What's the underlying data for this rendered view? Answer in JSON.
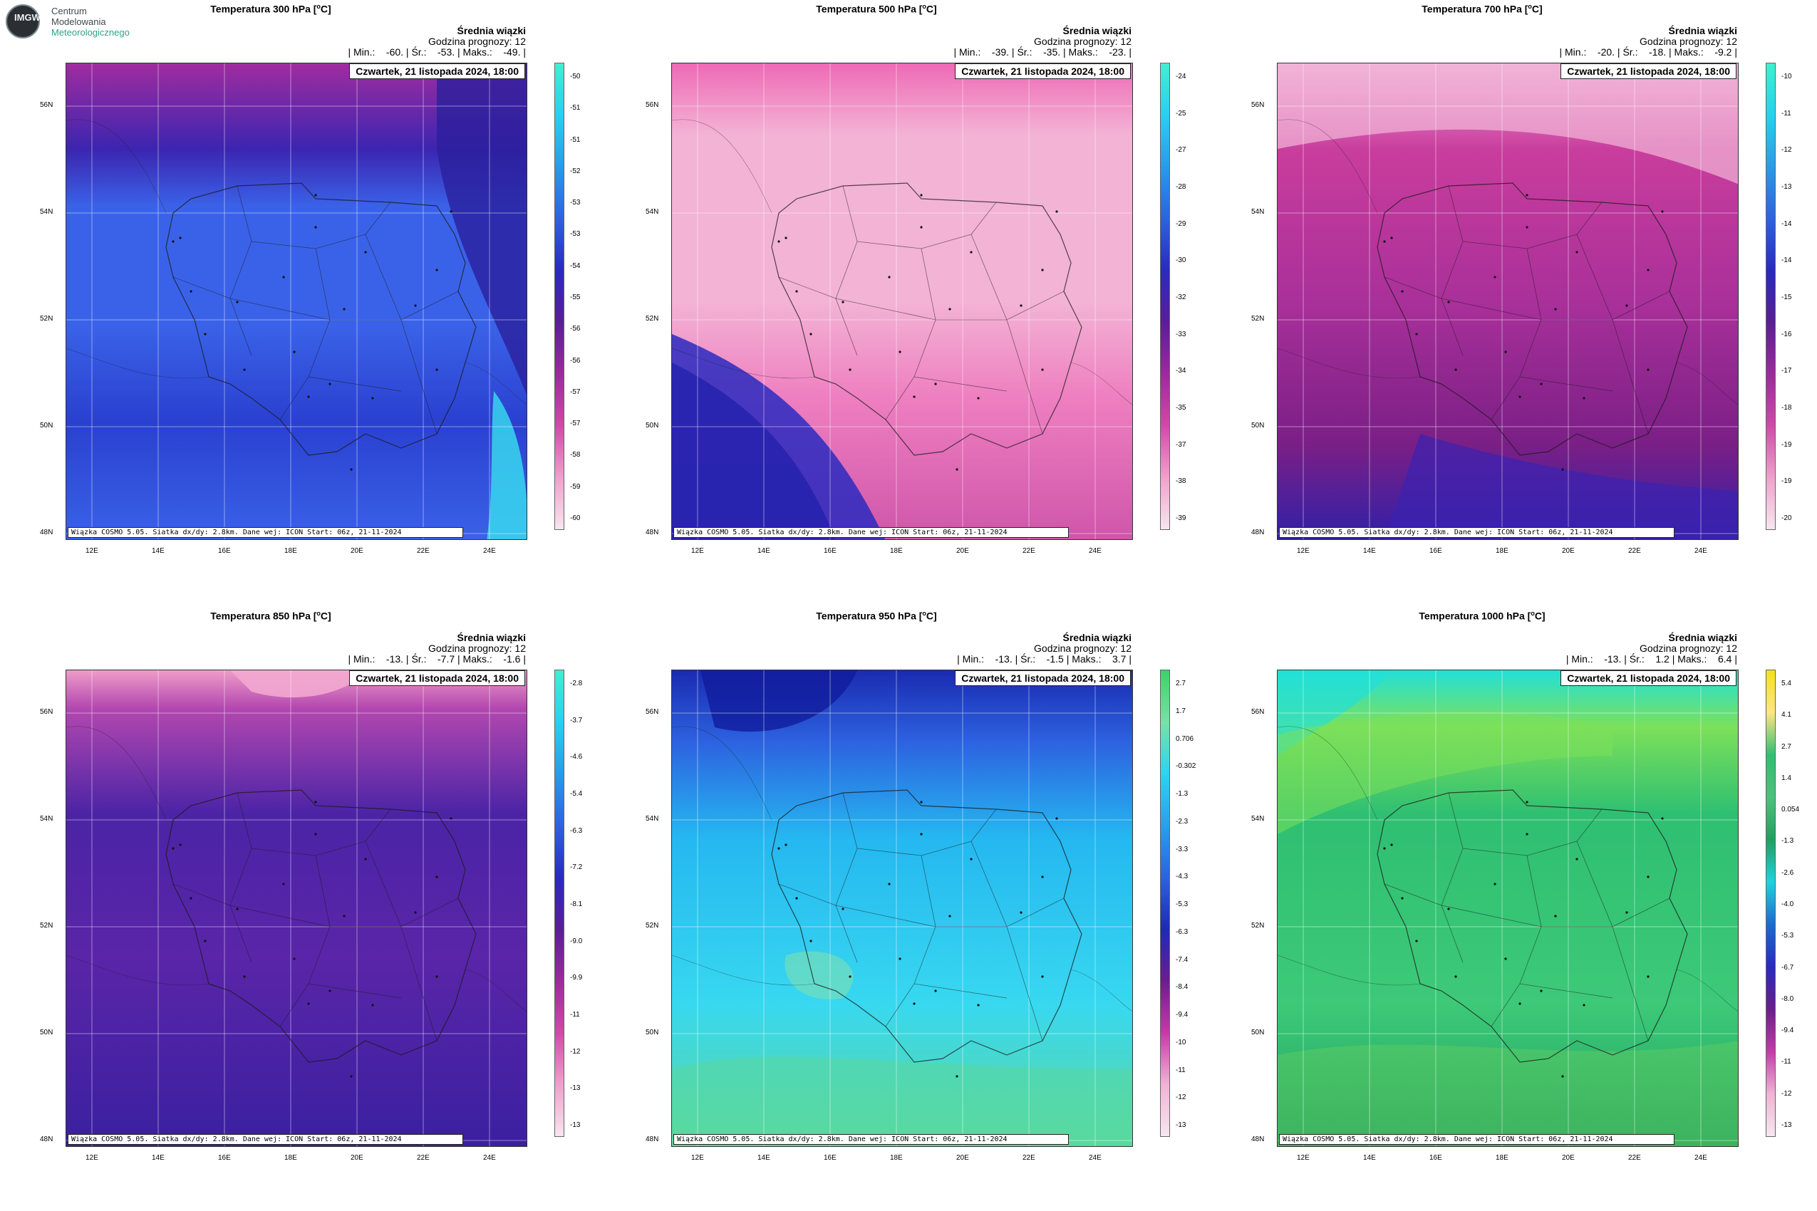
{
  "logo": {
    "badge": "IMGW",
    "line1": "Centrum",
    "line2": "Modelowania",
    "line3": "Meteorologicznego"
  },
  "common": {
    "subtitle": "Średnia wiązki",
    "forecast_hour": "Godzina prognozy: 12",
    "date": "Czwartek, 21 listopada 2024, 18:00",
    "footer": "Wiązka COSMO 5.05. Siatka dx/dy: 2.8km. Dane wej: ICON Start: 06z, 21-11-2024",
    "lat_labels": [
      "56N",
      "54N",
      "52N",
      "50N",
      "48N"
    ],
    "lon_labels": [
      "12E",
      "14E",
      "16E",
      "18E",
      "20E",
      "22E",
      "24E"
    ]
  },
  "panels": [
    {
      "title": "Temperatura 300 hPa [",
      "unit": "C]",
      "stats": "| Min.:    -60. | Śr.:    -53. | Maks.:    -49. |",
      "scheme": "cold",
      "colorbar_labels": [
        "-50",
        "-51",
        "-51",
        "-52",
        "-53",
        "-53",
        "-54",
        "-55",
        "-56",
        "-56",
        "-57",
        "-57",
        "-58",
        "-59",
        "-60"
      ],
      "colors": {
        "base": "#3a62e8",
        "top": "#a02ca0",
        "band": "#3b25b0",
        "accent": "#38e0f0"
      }
    },
    {
      "title": "Temperatura 500 hPa [",
      "unit": "C]",
      "stats": "| Min.:    -39. | Śr.:    -35. | Maks.:    -23. |",
      "scheme": "pink",
      "colorbar_labels": [
        "-24",
        "-25",
        "-27",
        "-28",
        "-29",
        "-30",
        "-32",
        "-33",
        "-34",
        "-35",
        "-37",
        "-38",
        "-39"
      ],
      "colors": {
        "base": "#f3b3d5",
        "top": "#ee6ab5",
        "band": "#2a2ac0",
        "accent": "#e05db0"
      }
    },
    {
      "title": "Temperatura 700 hPa [",
      "unit": "C]",
      "stats": "| Min.:    -20. | Śr.:    -18. | Maks.:    -9.2 |",
      "scheme": "magenta",
      "colorbar_labels": [
        "-10",
        "-11",
        "-12",
        "-13",
        "-14",
        "-14",
        "-15",
        "-16",
        "-17",
        "-18",
        "-19",
        "-19",
        "-20"
      ],
      "colors": {
        "base": "#c93d9d",
        "top": "#f0a9d2",
        "band": "#7a1f86",
        "accent": "#3020a8"
      }
    },
    {
      "title": "Temperatura 850 hPa [",
      "unit": "C]",
      "stats": "| Min.:    -13. | Śr.:    -7.7 | Maks.:    -1.6 |",
      "scheme": "violet",
      "colorbar_labels": [
        "-2.8",
        "-3.7",
        "-4.6",
        "-5.4",
        "-6.3",
        "-7.2",
        "-8.1",
        "-9.0",
        "-9.9",
        "-11",
        "-12",
        "-13",
        "-13"
      ],
      "colors": {
        "base": "#4b24a6",
        "top": "#b347b0",
        "band": "#6a1e8c",
        "accent": "#ef9cc8"
      }
    },
    {
      "title": "Temperatura 950 hPa [",
      "unit": "C]",
      "stats": "| Min.:    -13. | Śr.:    -1.5 | Maks.:    3.7 |",
      "scheme": "cyan",
      "colorbar_labels": [
        "2.7",
        "1.7",
        "0.706",
        "-0.302",
        "-1.3",
        "-2.3",
        "-3.3",
        "-4.3",
        "-5.3",
        "-6.3",
        "-7.4",
        "-8.4",
        "-9.4",
        "-10",
        "-11",
        "-12",
        "-13"
      ],
      "colors": {
        "base": "#25b7f0",
        "top": "#1a2bb0",
        "band": "#2d62e0",
        "accent": "#5ed99a"
      }
    },
    {
      "title": "Temperatura 1000 hPa [",
      "unit": "C]",
      "stats": "| Min.:    -13. | Śr.:    1.2 | Maks.:    6.4 |",
      "scheme": "green",
      "colorbar_labels": [
        "5.4",
        "4.1",
        "2.7",
        "1.4",
        "0.054",
        "-1.3",
        "-2.6",
        "-4.0",
        "-5.3",
        "-6.7",
        "-8.0",
        "-9.4",
        "-11",
        "-12",
        "-13"
      ],
      "colors": {
        "base": "#2fbf72",
        "top": "#22e0d8",
        "band": "#7ce05a",
        "accent": "#1fa060"
      }
    }
  ]
}
